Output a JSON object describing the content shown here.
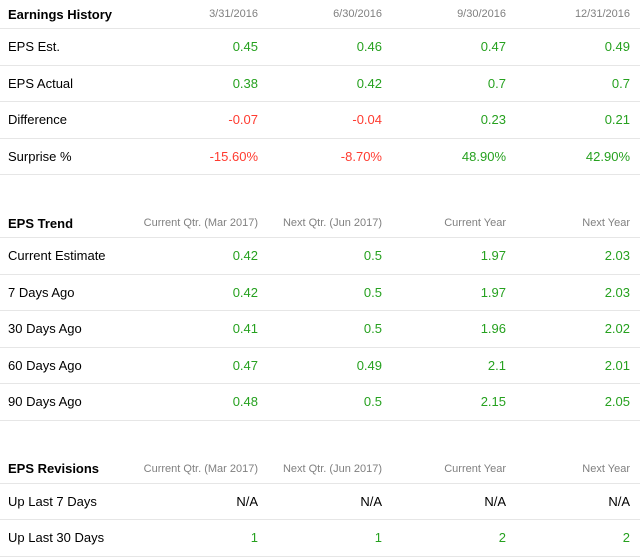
{
  "earnings_history": {
    "title": "Earnings History",
    "columns": [
      "3/31/2016",
      "6/30/2016",
      "9/30/2016",
      "12/31/2016"
    ],
    "rows": [
      {
        "label": "EPS Est.",
        "values": [
          "0.45",
          "0.46",
          "0.47",
          "0.49"
        ],
        "tones": [
          "pos",
          "pos",
          "pos",
          "pos"
        ]
      },
      {
        "label": "EPS Actual",
        "values": [
          "0.38",
          "0.42",
          "0.7",
          "0.7"
        ],
        "tones": [
          "pos",
          "pos",
          "pos",
          "pos"
        ]
      },
      {
        "label": "Difference",
        "values": [
          "-0.07",
          "-0.04",
          "0.23",
          "0.21"
        ],
        "tones": [
          "neg",
          "neg",
          "pos",
          "pos"
        ]
      },
      {
        "label": "Surprise %",
        "values": [
          "-15.60%",
          "-8.70%",
          "48.90%",
          "42.90%"
        ],
        "tones": [
          "neg",
          "neg",
          "pos",
          "pos"
        ]
      }
    ]
  },
  "eps_trend": {
    "title": "EPS Trend",
    "columns": [
      "Current Qtr. (Mar 2017)",
      "Next Qtr. (Jun 2017)",
      "Current Year",
      "Next Year"
    ],
    "rows": [
      {
        "label": "Current Estimate",
        "values": [
          "0.42",
          "0.5",
          "1.97",
          "2.03"
        ],
        "tones": [
          "pos",
          "pos",
          "pos",
          "pos"
        ]
      },
      {
        "label": "7 Days Ago",
        "values": [
          "0.42",
          "0.5",
          "1.97",
          "2.03"
        ],
        "tones": [
          "pos",
          "pos",
          "pos",
          "pos"
        ]
      },
      {
        "label": "30 Days Ago",
        "values": [
          "0.41",
          "0.5",
          "1.96",
          "2.02"
        ],
        "tones": [
          "pos",
          "pos",
          "pos",
          "pos"
        ]
      },
      {
        "label": "60 Days Ago",
        "values": [
          "0.47",
          "0.49",
          "2.1",
          "2.01"
        ],
        "tones": [
          "pos",
          "pos",
          "pos",
          "pos"
        ]
      },
      {
        "label": "90 Days Ago",
        "values": [
          "0.48",
          "0.5",
          "2.15",
          "2.05"
        ],
        "tones": [
          "pos",
          "pos",
          "pos",
          "pos"
        ]
      }
    ]
  },
  "eps_revisions": {
    "title": "EPS Revisions",
    "columns": [
      "Current Qtr. (Mar 2017)",
      "Next Qtr. (Jun 2017)",
      "Current Year",
      "Next Year"
    ],
    "rows": [
      {
        "label": "Up Last 7 Days",
        "values": [
          "N/A",
          "N/A",
          "N/A",
          "N/A"
        ],
        "tones": [
          "na",
          "na",
          "na",
          "na"
        ]
      },
      {
        "label": "Up Last 30 Days",
        "values": [
          "1",
          "1",
          "2",
          "2"
        ],
        "tones": [
          "pos",
          "pos",
          "pos",
          "pos"
        ]
      }
    ]
  },
  "colors": {
    "positive": "#26a11f",
    "negative": "#ff3b30",
    "header_text": "#808080",
    "divider": "#e6e6e6"
  }
}
